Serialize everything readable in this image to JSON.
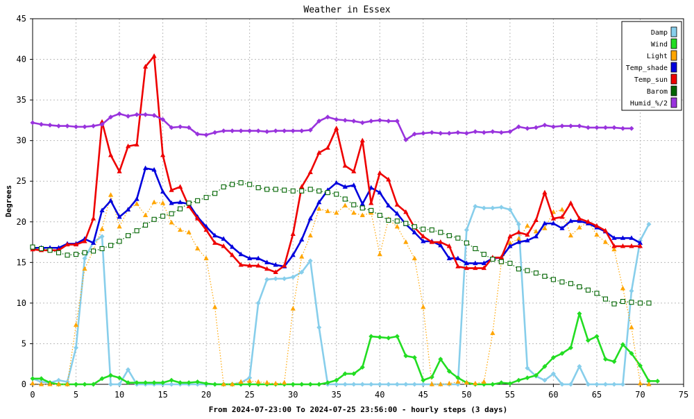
{
  "chart_data": {
    "type": "line",
    "title": "Weather in Essex",
    "xlabel": "From 2024-07-23:00 To 2024-07-25 23:56:00 - hourly steps (3 days)",
    "ylabel": "Degrees",
    "xlim": [
      0,
      75
    ],
    "ylim": [
      0,
      45
    ],
    "xticks": [
      0,
      5,
      10,
      15,
      20,
      25,
      30,
      35,
      40,
      45,
      50,
      55,
      60,
      65,
      70,
      75
    ],
    "yticks": [
      0,
      5,
      10,
      15,
      20,
      25,
      30,
      35,
      40,
      45
    ],
    "grid": true,
    "legend_position": "top-right",
    "series": [
      {
        "name": "Damp",
        "color": "#87ceeb",
        "marker": "diamond",
        "values": [
          0.7,
          0.3,
          0.2,
          0.5,
          0.3,
          4.5,
          15.5,
          17.5,
          18.2,
          0,
          0,
          1.8,
          0,
          0,
          0,
          0,
          0,
          0,
          0,
          0,
          0,
          0,
          0,
          0,
          0.2,
          0.8,
          10,
          12.9,
          13,
          13,
          13.2,
          13.8,
          15.2,
          7,
          0,
          0,
          0,
          0,
          0,
          0,
          0,
          0,
          0,
          0,
          0,
          0,
          0,
          0,
          0,
          0,
          19,
          21.9,
          21.7,
          21.7,
          21.8,
          21.5,
          19.7,
          2,
          1,
          0.5,
          1.3,
          0,
          0,
          2.2,
          0,
          0,
          0,
          0,
          0,
          11.5,
          17.7,
          19.7
        ]
      },
      {
        "name": "Wind",
        "color": "#22dd22",
        "marker": "diamond",
        "values": [
          0.7,
          0.7,
          0.2,
          0,
          0,
          0,
          0,
          0,
          0.7,
          1.1,
          0.8,
          0.2,
          0.2,
          0.2,
          0.2,
          0.2,
          0.5,
          0.2,
          0.2,
          0.3,
          0.1,
          0,
          0,
          0,
          0,
          0,
          0,
          0,
          0,
          0,
          0,
          0,
          0,
          0,
          0.2,
          0.5,
          1.3,
          1.3,
          2.1,
          5.9,
          5.8,
          5.7,
          5.9,
          3.5,
          3.3,
          0.5,
          0.9,
          3.1,
          1.6,
          0.8,
          0.2,
          0,
          0,
          0,
          0.2,
          0.1,
          0.5,
          0.8,
          1.1,
          2.2,
          3.3,
          3.8,
          4.5,
          8.7,
          5.4,
          5.9,
          3.1,
          2.8,
          4.9,
          3.8,
          2.3,
          0.4,
          0.4
        ]
      },
      {
        "name": "Light",
        "color": "#ffa500",
        "marker": "triangle",
        "values": [
          0.1,
          0,
          0,
          0,
          0,
          7.3,
          14.2,
          16.5,
          19.1,
          23.3,
          19.4,
          21.5,
          22.2,
          20.8,
          22.4,
          22.3,
          19.9,
          19,
          18.7,
          16.7,
          15.5,
          9.5,
          0,
          0,
          0.3,
          0.4,
          0.3,
          0.2,
          0.1,
          0.2,
          9.3,
          15.7,
          18.3,
          21.6,
          21.3,
          21.1,
          22,
          21.1,
          20.8,
          21.1,
          16,
          20.3,
          19.4,
          17.5,
          15.5,
          9.5,
          0,
          0,
          0.1,
          0.3,
          0.2,
          0.1,
          0.3,
          6.3,
          15,
          17.4,
          17.9,
          19.5,
          18.8,
          19.2,
          21.2,
          21.5,
          18.3,
          19.3,
          20,
          18.4,
          17.5,
          16.6,
          11.8,
          7,
          0.1,
          0
        ]
      },
      {
        "name": "Temp_shade",
        "color": "#0000dd",
        "marker": "triangle",
        "values": [
          16.8,
          16.8,
          16.8,
          16.8,
          17.3,
          17.3,
          17.9,
          17.4,
          21.4,
          22.6,
          20.6,
          21.5,
          22.8,
          26.6,
          26.4,
          23.7,
          22.3,
          22.4,
          22.2,
          20.6,
          19.4,
          18.3,
          17.9,
          16.9,
          16,
          15.5,
          15.5,
          15,
          14.7,
          14.5,
          15.9,
          17.8,
          20.4,
          22.4,
          23.9,
          24.8,
          24.3,
          24.5,
          22.2,
          24.2,
          23.6,
          22,
          21,
          19.7,
          18.7,
          17.6,
          17.6,
          17.1,
          15.5,
          15.5,
          14.9,
          14.9,
          14.9,
          15.5,
          15.6,
          17,
          17.5,
          17.7,
          18.2,
          19.8,
          19.8,
          19.2,
          20.1,
          20.1,
          19.8,
          19.3,
          18.8,
          18,
          18,
          18,
          17.4
        ]
      },
      {
        "name": "Temp_sun",
        "color": "#ee0000",
        "marker": "triangle",
        "values": [
          16.6,
          16.5,
          16.5,
          16.5,
          17.2,
          17.2,
          17.6,
          20.4,
          32.3,
          28.2,
          26.2,
          29.3,
          29.5,
          39.1,
          40.4,
          28.2,
          23.9,
          24.3,
          21.9,
          20.4,
          19,
          17.4,
          17,
          15.9,
          14.7,
          14.6,
          14.6,
          14.2,
          13.8,
          14.6,
          18.5,
          24.3,
          26.1,
          28.5,
          29.1,
          31.5,
          26.9,
          26.2,
          30,
          22.3,
          26,
          25.2,
          22.1,
          21.2,
          19.3,
          18.2,
          17.5,
          17.5,
          17,
          14.5,
          14.3,
          14.3,
          14.3,
          15.6,
          15.6,
          18.2,
          18.7,
          18.4,
          20.2,
          23.6,
          20.4,
          20.6,
          22.3,
          20.4,
          20,
          19.5,
          18.9,
          17,
          17,
          17,
          17
        ]
      },
      {
        "name": "Barom",
        "color": "#006400",
        "marker": "square",
        "values": [
          16.9,
          16.7,
          16.5,
          16.2,
          15.9,
          16,
          16.2,
          16.4,
          16.7,
          17.1,
          17.6,
          18.3,
          18.9,
          19.6,
          20.3,
          20.7,
          21,
          21.6,
          22.3,
          22.6,
          23,
          23.5,
          24.3,
          24.6,
          24.8,
          24.6,
          24.2,
          24,
          24,
          23.9,
          23.8,
          23.8,
          24,
          23.8,
          23.6,
          23.4,
          22.8,
          22.1,
          21.7,
          21.4,
          20.8,
          20.2,
          20.1,
          19.8,
          19.4,
          19.1,
          19,
          18.7,
          18.3,
          18,
          17.4,
          16.7,
          16,
          15.4,
          15.1,
          14.9,
          14.2,
          14,
          13.7,
          13.3,
          12.9,
          12.6,
          12.4,
          12,
          11.6,
          11.2,
          10.5,
          9.9,
          10.2,
          10.1,
          10,
          10
        ]
      },
      {
        "name": "Humid_%/2",
        "color": "#9933dd",
        "marker": "diamond",
        "values": [
          32.2,
          32,
          31.9,
          31.8,
          31.8,
          31.7,
          31.7,
          31.8,
          32,
          32.9,
          33.3,
          33,
          33.2,
          33.2,
          33.1,
          32.6,
          31.6,
          31.7,
          31.6,
          30.8,
          30.7,
          31,
          31.2,
          31.2,
          31.2,
          31.2,
          31.2,
          31.1,
          31.2,
          31.2,
          31.2,
          31.2,
          31.3,
          32.4,
          32.9,
          32.6,
          32.5,
          32.4,
          32.2,
          32.4,
          32.5,
          32.4,
          32.4,
          30.1,
          30.8,
          30.9,
          31,
          30.9,
          30.9,
          31,
          30.9,
          31.1,
          31,
          31.1,
          31,
          31.1,
          31.7,
          31.5,
          31.6,
          31.9,
          31.7,
          31.8,
          31.8,
          31.8,
          31.6,
          31.6,
          31.6,
          31.6,
          31.5,
          31.5
        ]
      }
    ]
  }
}
